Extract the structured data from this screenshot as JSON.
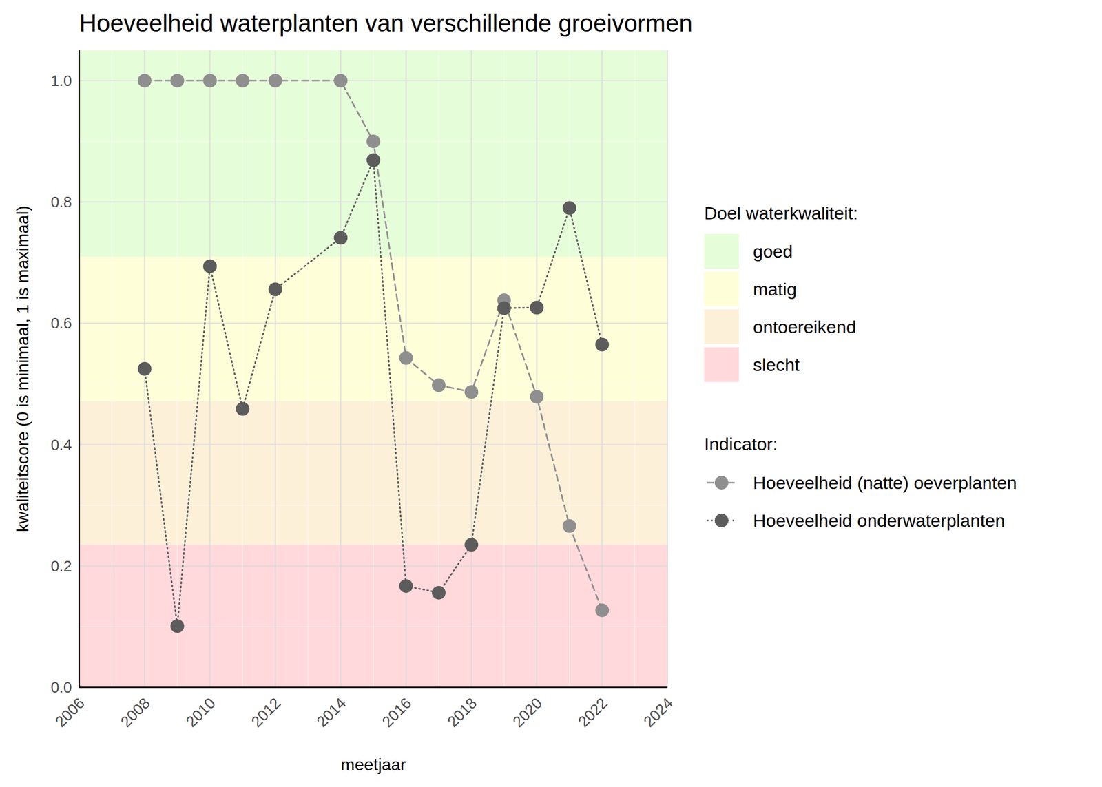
{
  "chart_data": {
    "type": "line",
    "title": "Hoeveelheid waterplanten van verschillende groeivormen",
    "x_label": "meetjaar",
    "y_label": "kwaliteitscore (0 is minimaal, 1 is maximaal)",
    "x": [
      2008,
      2009,
      2010,
      2011,
      2012,
      2014,
      2015,
      2016,
      2017,
      2018,
      2019,
      2020,
      2021,
      2022
    ],
    "series": [
      {
        "name": "Hoeveelheid (natte) oeverplanten",
        "color": "#8f8f8f",
        "line_style": "dashed",
        "marker": "circle",
        "values": [
          1.0,
          1.0,
          1.0,
          1.0,
          1.0,
          1.0,
          0.9,
          0.543,
          0.498,
          0.487,
          0.638,
          0.479,
          0.266,
          0.127
        ]
      },
      {
        "name": "Hoeveelheid onderwaterplanten",
        "color": "#5c5c5c",
        "line_style": "dotted",
        "marker": "circle",
        "values": [
          0.525,
          0.101,
          0.694,
          0.459,
          0.656,
          0.741,
          0.869,
          0.167,
          0.156,
          0.235,
          0.625,
          0.626,
          0.79,
          0.565
        ]
      }
    ],
    "xlim": [
      2006,
      2024
    ],
    "xticks": [
      2006,
      2008,
      2010,
      2012,
      2014,
      2016,
      2018,
      2020,
      2022,
      2024
    ],
    "ylim": [
      0,
      1.05
    ],
    "yticks": [
      {
        "value": 0,
        "label": "0.0"
      },
      0.2,
      0.4,
      0.6,
      0.8,
      {
        "value": 1,
        "label": "1.0"
      }
    ],
    "grid": true,
    "band_legend_title": "Doel waterkwaliteit:",
    "series_legend_title": "Indicator:",
    "bands": [
      {
        "name": "goed",
        "color": "#e6fdd9",
        "from": 0.71,
        "to": 1.05
      },
      {
        "name": "matig",
        "color": "#fefed9",
        "from": 0.4716,
        "to": 0.71
      },
      {
        "name": "ontoereikend",
        "color": "#fdf0d9",
        "from": 0.235,
        "to": 0.4716
      },
      {
        "name": "slecht",
        "color": "#ffd9dc",
        "from": 0,
        "to": 0.235
      }
    ]
  }
}
